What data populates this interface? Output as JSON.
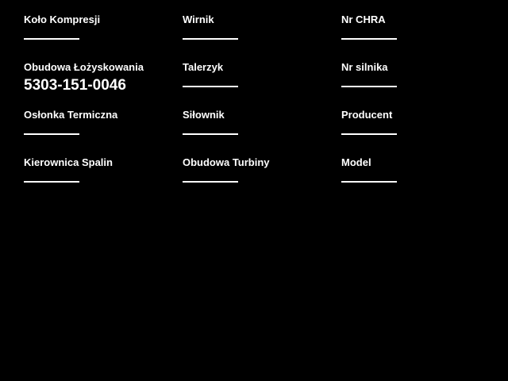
{
  "form": {
    "colors": {
      "background": "#000000",
      "text": "#ffffff",
      "input_line": "#ffffff"
    },
    "fields": [
      {
        "label": "Koło Kompresji",
        "value": ""
      },
      {
        "label": "Wirnik",
        "value": ""
      },
      {
        "label": "Nr CHRA",
        "value": ""
      },
      {
        "label": "Obudowa Łożyskowania",
        "value": "5303-151-0046"
      },
      {
        "label": "Talerzyk",
        "value": ""
      },
      {
        "label": "Nr silnika",
        "value": ""
      },
      {
        "label": "Osłonka Termiczna",
        "value": ""
      },
      {
        "label": "Siłownik",
        "value": ""
      },
      {
        "label": "Producent",
        "value": ""
      },
      {
        "label": "Kierownica Spalin",
        "value": ""
      },
      {
        "label": "Obudowa Turbiny",
        "value": ""
      },
      {
        "label": "Model",
        "value": ""
      }
    ]
  }
}
